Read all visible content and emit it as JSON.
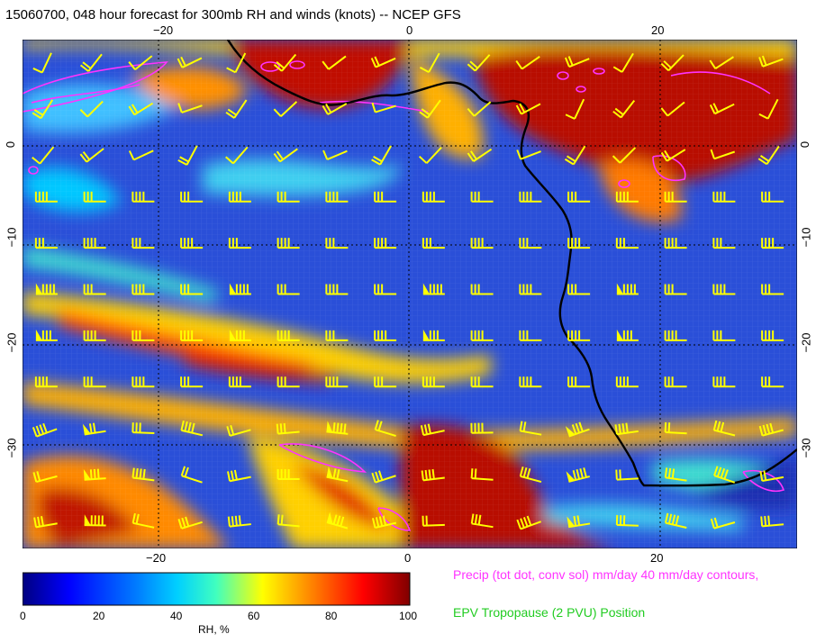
{
  "title": "15060700, 048 hour forecast for 300mb RH and winds (knots) -- NCEP GFS",
  "map": {
    "lon_top_ticks": [
      "−20",
      "0",
      "20"
    ],
    "lon_bottom_ticks": [
      "−20",
      "0",
      "20"
    ],
    "lat_ticks": [
      "0",
      "−10",
      "−20",
      "−30"
    ],
    "colors": {
      "precip_contour": "#ff33ff",
      "coastline": "#000000",
      "wind_barbs": "#ffff00"
    }
  },
  "colorbar": {
    "label": "RH, %",
    "ticks": [
      "0",
      "20",
      "40",
      "60",
      "80",
      "100"
    ],
    "colormap": [
      "#000080",
      "#0000ff",
      "#00bfff",
      "#00ffbf",
      "#ffff00",
      "#ff7f00",
      "#ff0000",
      "#800000"
    ]
  },
  "legend": {
    "precip": "Precip (tot dot, conv sol) mm/day 40 mm/day contours,",
    "tropopause": "EPV Tropopause (2 PVU) Position",
    "precip_color": "#ff33ff",
    "tropopause_color": "#22cc22"
  }
}
